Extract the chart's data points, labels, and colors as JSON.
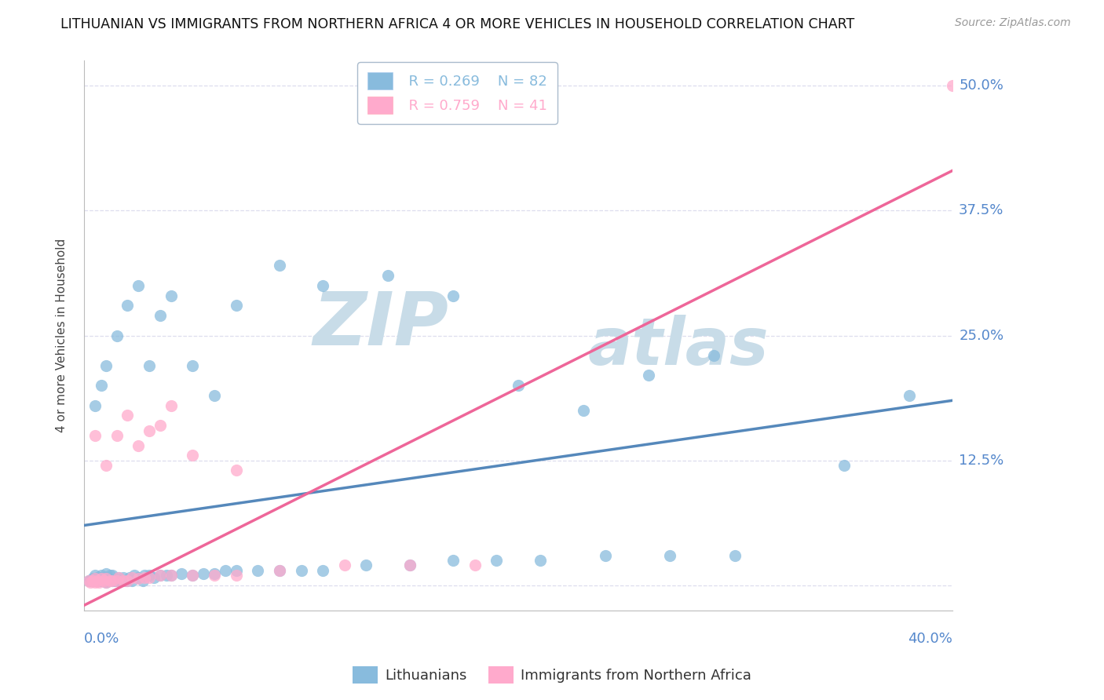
{
  "title": "LITHUANIAN VS IMMIGRANTS FROM NORTHERN AFRICA 4 OR MORE VEHICLES IN HOUSEHOLD CORRELATION CHART",
  "source": "Source: ZipAtlas.com",
  "ylabel": "4 or more Vehicles in Household",
  "yticks": [
    0.0,
    0.125,
    0.25,
    0.375,
    0.5
  ],
  "ytick_labels": [
    "",
    "12.5%",
    "25.0%",
    "37.5%",
    "50.0%"
  ],
  "xlim": [
    0.0,
    0.4
  ],
  "ylim": [
    -0.025,
    0.525
  ],
  "blue_color": "#88BBDD",
  "pink_color": "#FFAACC",
  "blue_line_color": "#5588BB",
  "pink_line_color": "#EE6699",
  "blue_label": "Lithuanians",
  "pink_label": "Immigrants from Northern Africa",
  "legend_R_blue": "R = 0.269",
  "legend_N_blue": "N = 82",
  "legend_R_pink": "R = 0.759",
  "legend_N_pink": "N = 41",
  "blue_scatter_x": [
    0.002,
    0.003,
    0.004,
    0.004,
    0.005,
    0.005,
    0.005,
    0.006,
    0.006,
    0.007,
    0.007,
    0.008,
    0.008,
    0.009,
    0.009,
    0.01,
    0.01,
    0.01,
    0.01,
    0.011,
    0.012,
    0.012,
    0.013,
    0.013,
    0.014,
    0.015,
    0.016,
    0.017,
    0.018,
    0.019,
    0.02,
    0.021,
    0.022,
    0.023,
    0.025,
    0.027,
    0.028,
    0.03,
    0.032,
    0.035,
    0.038,
    0.04,
    0.045,
    0.05,
    0.055,
    0.06,
    0.065,
    0.07,
    0.08,
    0.09,
    0.1,
    0.11,
    0.13,
    0.15,
    0.17,
    0.19,
    0.21,
    0.24,
    0.27,
    0.3,
    0.005,
    0.008,
    0.01,
    0.015,
    0.02,
    0.025,
    0.03,
    0.035,
    0.04,
    0.05,
    0.06,
    0.07,
    0.09,
    0.11,
    0.14,
    0.17,
    0.2,
    0.23,
    0.26,
    0.29,
    0.35,
    0.38
  ],
  "blue_scatter_y": [
    0.005,
    0.005,
    0.005,
    0.007,
    0.005,
    0.007,
    0.01,
    0.005,
    0.008,
    0.005,
    0.008,
    0.005,
    0.01,
    0.005,
    0.008,
    0.003,
    0.005,
    0.008,
    0.012,
    0.005,
    0.005,
    0.01,
    0.005,
    0.01,
    0.005,
    0.005,
    0.008,
    0.005,
    0.008,
    0.005,
    0.005,
    0.008,
    0.005,
    0.01,
    0.008,
    0.005,
    0.01,
    0.01,
    0.008,
    0.01,
    0.01,
    0.01,
    0.012,
    0.01,
    0.012,
    0.012,
    0.015,
    0.015,
    0.015,
    0.015,
    0.015,
    0.015,
    0.02,
    0.02,
    0.025,
    0.025,
    0.025,
    0.03,
    0.03,
    0.03,
    0.18,
    0.2,
    0.22,
    0.25,
    0.28,
    0.3,
    0.22,
    0.27,
    0.29,
    0.22,
    0.19,
    0.28,
    0.32,
    0.3,
    0.31,
    0.29,
    0.2,
    0.175,
    0.21,
    0.23,
    0.12,
    0.19
  ],
  "pink_scatter_x": [
    0.002,
    0.003,
    0.004,
    0.005,
    0.005,
    0.006,
    0.007,
    0.008,
    0.009,
    0.01,
    0.01,
    0.012,
    0.013,
    0.015,
    0.016,
    0.018,
    0.02,
    0.022,
    0.025,
    0.028,
    0.03,
    0.035,
    0.04,
    0.05,
    0.06,
    0.07,
    0.09,
    0.12,
    0.15,
    0.18,
    0.005,
    0.01,
    0.015,
    0.02,
    0.025,
    0.03,
    0.035,
    0.04,
    0.05,
    0.07,
    0.4
  ],
  "pink_scatter_y": [
    0.005,
    0.003,
    0.005,
    0.003,
    0.007,
    0.005,
    0.003,
    0.007,
    0.005,
    0.003,
    0.007,
    0.005,
    0.005,
    0.005,
    0.008,
    0.005,
    0.005,
    0.008,
    0.007,
    0.008,
    0.008,
    0.01,
    0.01,
    0.01,
    0.01,
    0.01,
    0.015,
    0.02,
    0.02,
    0.02,
    0.15,
    0.12,
    0.15,
    0.17,
    0.14,
    0.155,
    0.16,
    0.18,
    0.13,
    0.115,
    0.5
  ],
  "blue_trend_x": [
    0.0,
    0.4
  ],
  "blue_trend_y": [
    0.06,
    0.185
  ],
  "pink_trend_x": [
    0.0,
    0.4
  ],
  "pink_trend_y": [
    -0.02,
    0.415
  ],
  "watermark_line1": "ZIP",
  "watermark_line2": "atlas",
  "watermark_color": "#C8DCE8",
  "background_color": "#FFFFFF",
  "grid_color": "#DDDDEE"
}
